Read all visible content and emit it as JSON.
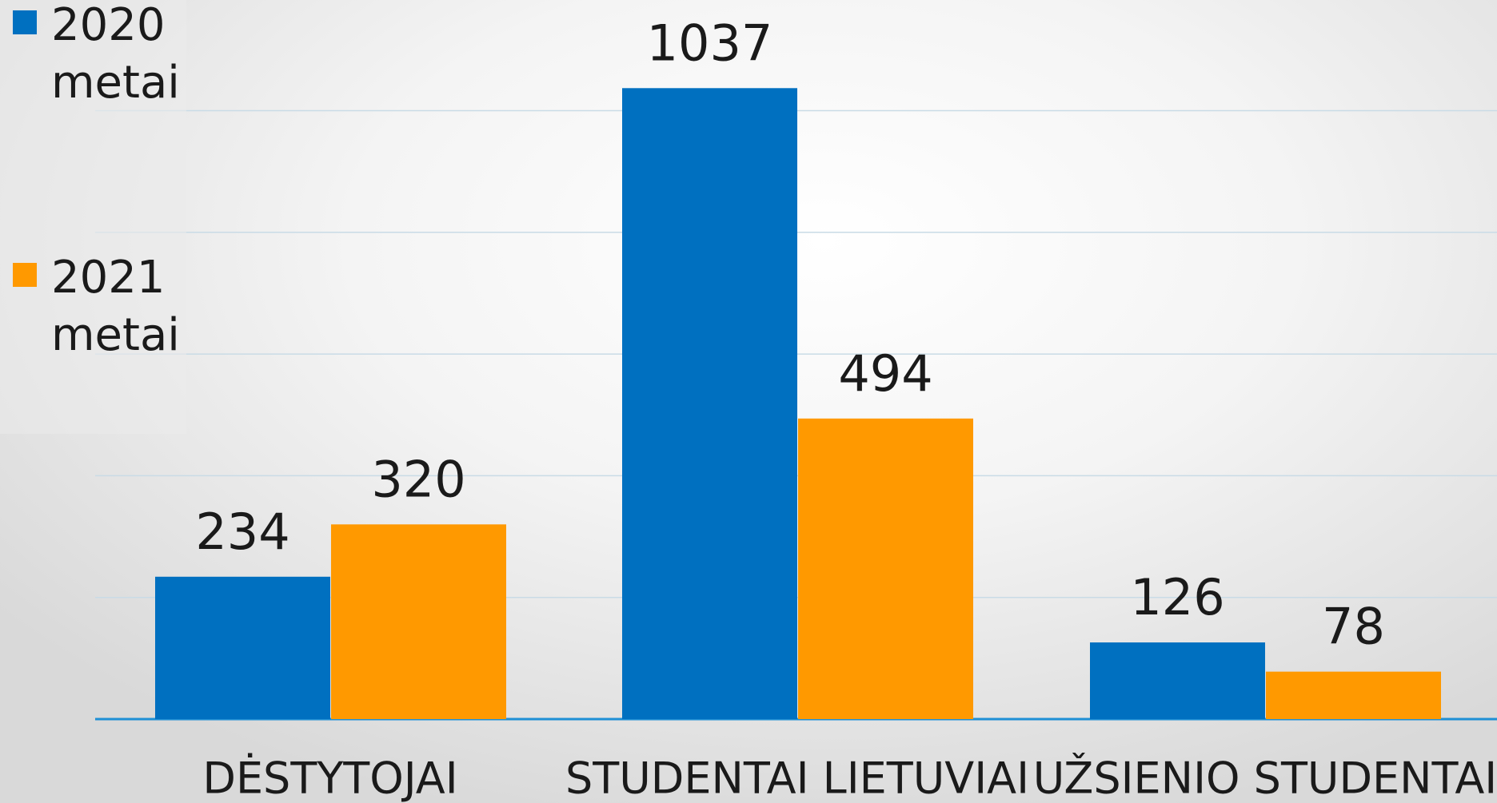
{
  "chart_data": {
    "type": "bar",
    "categories": [
      "DĖSTYTOJAI",
      "STUDENTAI LIETUVIAI",
      "UŽSIENIO STUDENTAI"
    ],
    "series": [
      {
        "name": "2020 metai",
        "color": "#0070c0",
        "values": [
          234,
          1037,
          126
        ]
      },
      {
        "name": "2021 metai",
        "color": "#ff9900",
        "values": [
          320,
          494,
          78
        ]
      }
    ],
    "ylim": [
      0,
      1180
    ],
    "yticks": [
      0,
      200,
      400,
      600,
      800,
      1000
    ],
    "grid": true
  }
}
